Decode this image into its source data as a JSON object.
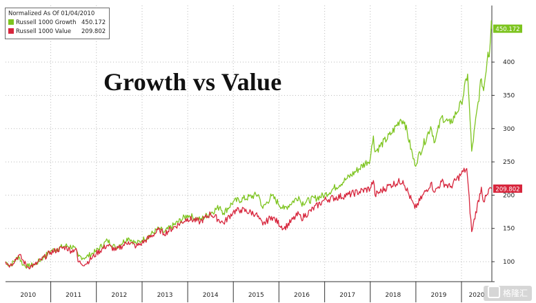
{
  "chart_data": {
    "type": "line",
    "title": "Growth vs Value",
    "subtitle": "Normalized As Of 01/04/2010",
    "x_axis": {
      "tick_labels": [
        "2010",
        "2011",
        "2012",
        "2013",
        "2014",
        "2015",
        "2016",
        "2017",
        "2018",
        "2019",
        "2020"
      ],
      "range": [
        "2010-01-04",
        "2020-08-31"
      ]
    },
    "y_axis": {
      "range": [
        70,
        485
      ],
      "ticks": [
        100,
        150,
        200,
        250,
        300,
        350,
        400
      ],
      "tick_labels": [
        "100",
        "150",
        "200",
        "250",
        "300",
        "350",
        "400"
      ],
      "side": "right"
    },
    "grid": true,
    "legend_position": "top-left",
    "series": [
      {
        "name": "Russell 1000 Growth",
        "color": "#7dc41f",
        "last_value": "450.172",
        "points": [
          [
            "2010-01-04",
            100
          ],
          [
            "2010-02-10",
            94
          ],
          [
            "2010-04-20",
            108
          ],
          [
            "2010-05-25",
            95
          ],
          [
            "2010-07-05",
            93
          ],
          [
            "2010-08-30",
            96
          ],
          [
            "2010-12-31",
            116
          ],
          [
            "2011-04-29",
            124
          ],
          [
            "2011-07-05",
            122
          ],
          [
            "2011-08-10",
            108
          ],
          [
            "2011-10-04",
            106
          ],
          [
            "2011-12-31",
            116
          ],
          [
            "2012-03-30",
            132
          ],
          [
            "2012-06-01",
            121
          ],
          [
            "2012-09-14",
            136
          ],
          [
            "2012-11-15",
            127
          ],
          [
            "2012-12-31",
            132
          ],
          [
            "2013-05-21",
            150
          ],
          [
            "2013-06-24",
            144
          ],
          [
            "2013-12-31",
            170
          ],
          [
            "2014-04-11",
            163
          ],
          [
            "2014-09-18",
            183
          ],
          [
            "2014-10-15",
            173
          ],
          [
            "2014-12-31",
            190
          ],
          [
            "2015-07-20",
            201
          ],
          [
            "2015-08-25",
            180
          ],
          [
            "2015-11-03",
            199
          ],
          [
            "2016-02-11",
            179
          ],
          [
            "2016-06-08",
            198
          ],
          [
            "2016-06-27",
            188
          ],
          [
            "2016-12-31",
            200
          ],
          [
            "2017-06-30",
            225
          ],
          [
            "2017-12-31",
            254
          ],
          [
            "2018-01-26",
            289
          ],
          [
            "2018-02-08",
            265
          ],
          [
            "2018-06-20",
            293
          ],
          [
            "2018-08-31",
            314
          ],
          [
            "2018-10-03",
            310
          ],
          [
            "2018-12-24",
            245
          ],
          [
            "2019-04-30",
            303
          ],
          [
            "2019-06-03",
            280
          ],
          [
            "2019-07-26",
            318
          ],
          [
            "2019-10-03",
            307
          ],
          [
            "2019-12-31",
            338
          ],
          [
            "2020-02-19",
            382
          ],
          [
            "2020-03-23",
            266
          ],
          [
            "2020-06-08",
            375
          ],
          [
            "2020-06-26",
            357
          ],
          [
            "2020-07-31",
            415
          ],
          [
            "2020-08-10",
            408
          ],
          [
            "2020-08-27",
            462
          ],
          [
            "2020-08-31",
            450.172
          ]
        ]
      },
      {
        "name": "Russell 1000 Value",
        "color": "#d7263d",
        "last_value": "209.802",
        "points": [
          [
            "2010-01-04",
            100
          ],
          [
            "2010-02-10",
            94
          ],
          [
            "2010-04-23",
            110
          ],
          [
            "2010-06-30",
            92
          ],
          [
            "2010-08-26",
            95
          ],
          [
            "2010-12-31",
            114
          ],
          [
            "2011-04-29",
            122
          ],
          [
            "2011-06-15",
            116
          ],
          [
            "2011-07-22",
            120
          ],
          [
            "2011-08-08",
            100
          ],
          [
            "2011-10-03",
            96
          ],
          [
            "2011-12-31",
            112
          ],
          [
            "2012-03-30",
            125
          ],
          [
            "2012-06-04",
            117
          ],
          [
            "2012-09-14",
            130
          ],
          [
            "2012-11-15",
            123
          ],
          [
            "2012-12-31",
            128
          ],
          [
            "2013-05-21",
            148
          ],
          [
            "2013-06-24",
            142
          ],
          [
            "2013-12-31",
            165
          ],
          [
            "2014-04-11",
            160
          ],
          [
            "2014-07-03",
            172
          ],
          [
            "2014-10-15",
            158
          ],
          [
            "2014-12-31",
            175
          ],
          [
            "2015-03-02",
            178
          ],
          [
            "2015-06-30",
            172
          ],
          [
            "2015-08-25",
            155
          ],
          [
            "2015-11-03",
            168
          ],
          [
            "2016-02-11",
            150
          ],
          [
            "2016-06-08",
            172
          ],
          [
            "2016-06-27",
            165
          ],
          [
            "2016-12-31",
            193
          ],
          [
            "2017-06-30",
            200
          ],
          [
            "2017-12-31",
            210
          ],
          [
            "2018-01-26",
            222
          ],
          [
            "2018-02-08",
            200
          ],
          [
            "2018-06-06",
            215
          ],
          [
            "2018-09-20",
            222
          ],
          [
            "2018-12-24",
            180
          ],
          [
            "2019-04-30",
            218
          ],
          [
            "2019-06-03",
            205
          ],
          [
            "2019-07-26",
            220
          ],
          [
            "2019-10-03",
            212
          ],
          [
            "2019-12-31",
            232
          ],
          [
            "2020-02-12",
            240
          ],
          [
            "2020-03-23",
            145
          ],
          [
            "2020-06-08",
            212
          ],
          [
            "2020-06-26",
            190
          ],
          [
            "2020-07-31",
            202
          ],
          [
            "2020-08-10",
            210
          ],
          [
            "2020-08-31",
            209.802
          ]
        ]
      }
    ]
  },
  "watermark_label": "格隆汇"
}
